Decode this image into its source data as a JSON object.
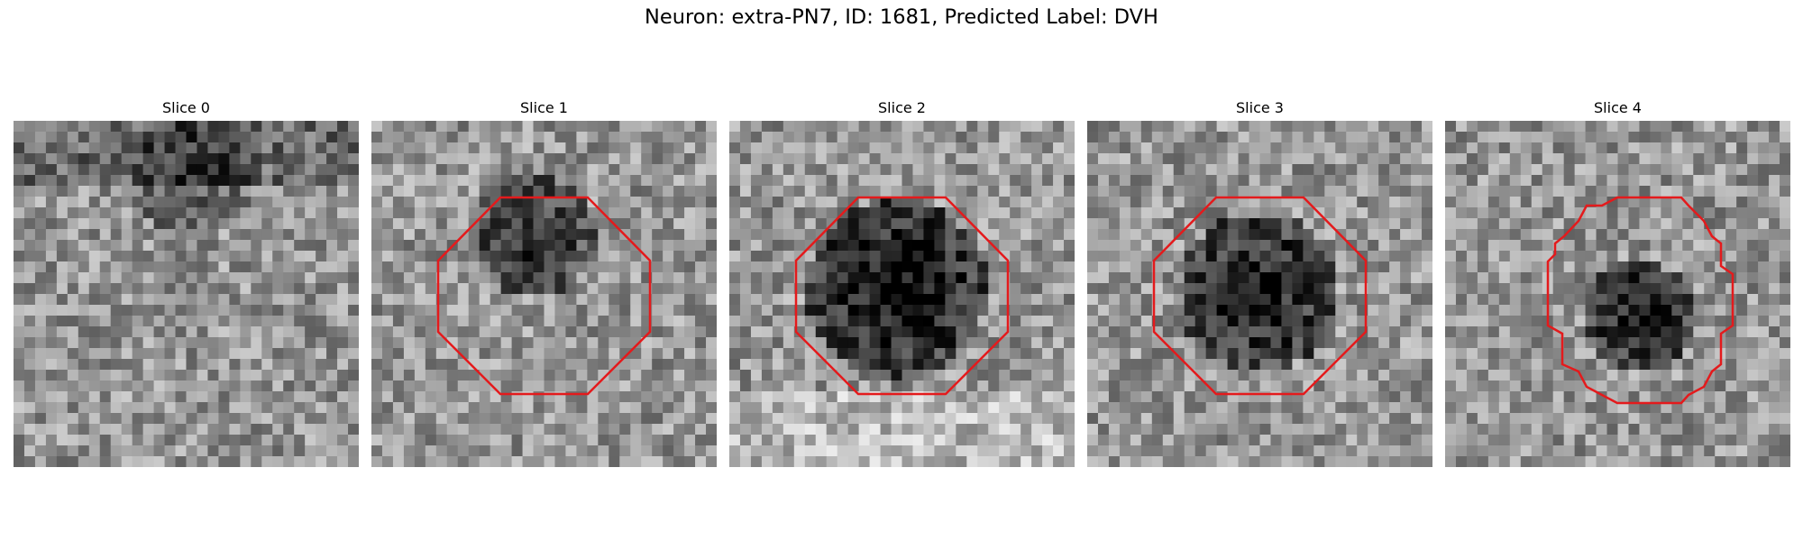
{
  "figure": {
    "title": "Neuron: extra-PN7, ID: 1681, Predicted Label: DVH",
    "outline_color": "#e41a1c"
  },
  "slices": [
    {
      "title": "Slice 0",
      "has_outline": false,
      "outline_shape": "none",
      "dark_region": "none"
    },
    {
      "title": "Slice 1",
      "has_outline": true,
      "outline_shape": "octagon",
      "dark_region": "upper-center"
    },
    {
      "title": "Slice 2",
      "has_outline": true,
      "outline_shape": "octagon",
      "dark_region": "center"
    },
    {
      "title": "Slice 3",
      "has_outline": true,
      "outline_shape": "octagon",
      "dark_region": "center"
    },
    {
      "title": "Slice 4",
      "has_outline": true,
      "outline_shape": "stepped-octagon",
      "dark_region": "center"
    }
  ]
}
